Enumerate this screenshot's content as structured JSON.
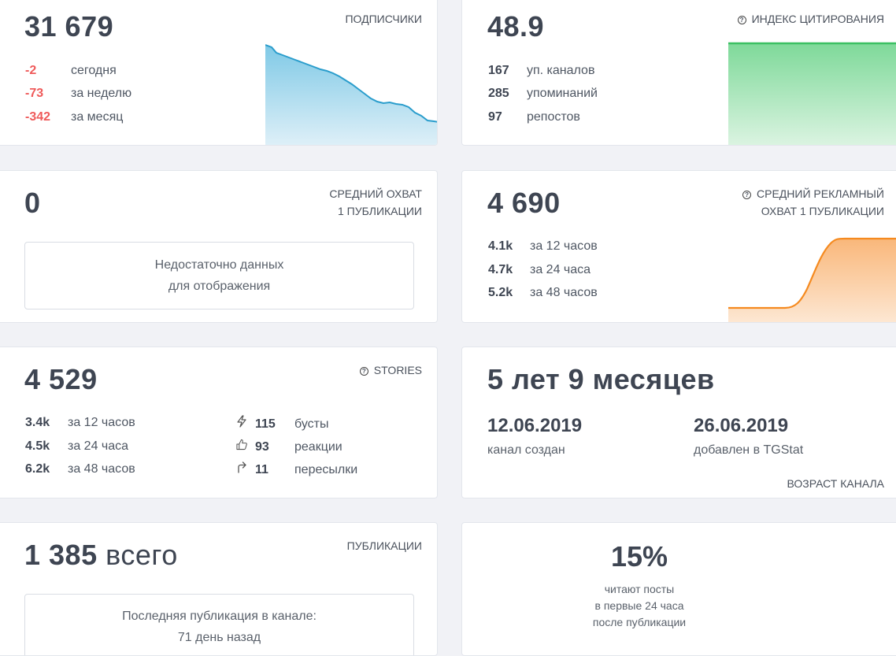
{
  "subscribers": {
    "label": "ПОДПИСЧИКИ",
    "total": "31 679",
    "rows": [
      {
        "value": "-2",
        "text": "сегодня"
      },
      {
        "value": "-73",
        "text": "за неделю"
      },
      {
        "value": "-342",
        "text": "за месяц"
      }
    ],
    "chart_color": "#3aaad3"
  },
  "citation": {
    "label": "ИНДЕКС ЦИТИРОВАНИЯ",
    "total": "48.9",
    "rows": [
      {
        "value": "167",
        "text": "уп. каналов"
      },
      {
        "value": "285",
        "text": "упоминаний"
      },
      {
        "value": "97",
        "text": "репостов"
      }
    ],
    "chart_color": "#3cc063"
  },
  "avg_reach": {
    "label_line1": "СРЕДНИЙ ОХВАТ",
    "label_line2": "1 ПУБЛИКАЦИИ",
    "total": "0",
    "empty_line1": "Недостаточно данных",
    "empty_line2": "для отображения"
  },
  "ad_reach": {
    "label_line1": "СРЕДНИЙ РЕКЛАМНЫЙ",
    "label_line2": "ОХВАТ 1 ПУБЛИКАЦИИ",
    "total": "4 690",
    "rows": [
      {
        "value": "4.1k",
        "text": "за 12 часов"
      },
      {
        "value": "4.7k",
        "text": "за 24 часа"
      },
      {
        "value": "5.2k",
        "text": "за 48 часов"
      }
    ],
    "chart_color": "#f58a1f"
  },
  "stories": {
    "label": "STORIES",
    "total": "4 529",
    "rows": [
      {
        "value": "3.4k",
        "text": "за 12 часов"
      },
      {
        "value": "4.5k",
        "text": "за 24 часа"
      },
      {
        "value": "6.2k",
        "text": "за 48 часов"
      }
    ],
    "stats": [
      {
        "icon": "lightning-icon",
        "value": "115",
        "text": "бусты"
      },
      {
        "icon": "thumbs-up-icon",
        "value": "93",
        "text": "реакции"
      },
      {
        "icon": "share-arrow-icon",
        "value": "11",
        "text": "пересылки"
      }
    ]
  },
  "age": {
    "total": "5 лет 9 месяцев",
    "created_date": "12.06.2019",
    "created_text": "канал создан",
    "added_date": "26.06.2019",
    "added_text": "добавлен в TGStat",
    "label": "ВОЗРАСТ КАНАЛА"
  },
  "publications": {
    "label": "ПУБЛИКАЦИИ",
    "total": "1 385",
    "total_suffix": "всего",
    "last_line1": "Последняя публикация в канале:",
    "last_line2": "71 день назад"
  },
  "readers": {
    "percent": "15%",
    "line1": "читают посты",
    "line2": "в первые 24 часа",
    "line3": "после публикации"
  }
}
